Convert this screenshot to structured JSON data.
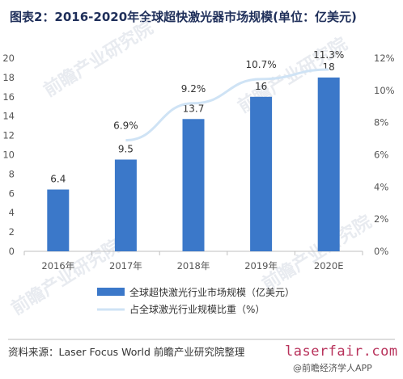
{
  "title": "图表2：2016-2020年全球超快激光器市场规模(单位：亿美元)",
  "source": "资料来源：Laser Focus World 前瞻产业研究院整理",
  "logo": {
    "text": "laserfair.com",
    "sub": "@前瞻经济学人APP"
  },
  "watermark": {
    "text": "前瞻产业研究院"
  },
  "colors": {
    "bar": "#3b78c9",
    "line": "#cfe3f5",
    "title": "#1f2f5a"
  },
  "chart_data": {
    "type": "bar",
    "categories": [
      "2016年",
      "2017年",
      "2018年",
      "2019年",
      "2020E"
    ],
    "series": [
      {
        "name": "全球超快激光行业市场规模（亿美元）",
        "type": "bar",
        "axis": "left",
        "values": [
          6.4,
          9.5,
          13.7,
          16,
          18
        ],
        "labels": [
          "6.4",
          "9.5",
          "13.7",
          "16",
          "18"
        ]
      },
      {
        "name": "占全球激光行业规模比重（%）",
        "type": "line",
        "axis": "right",
        "values": [
          null,
          6.9,
          9.2,
          10.7,
          11.3
        ],
        "labels": [
          "",
          "6.9%",
          "9.2%",
          "10.7%",
          "11.3%"
        ]
      }
    ],
    "y_left": {
      "min": 0,
      "max": 20,
      "ticks": [
        "0",
        "2",
        "4",
        "6",
        "8",
        "10",
        "12",
        "14",
        "16",
        "18",
        "20"
      ]
    },
    "y_right": {
      "min": 0,
      "max": 12,
      "ticks": [
        "0%",
        "2%",
        "4%",
        "6%",
        "8%",
        "10%",
        "12%"
      ]
    },
    "grid": false,
    "legend_position": "bottom"
  }
}
